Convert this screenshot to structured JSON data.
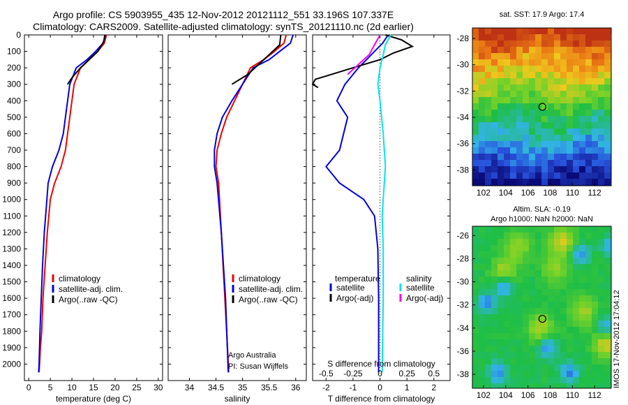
{
  "header": {
    "title_line1": "Argo profile: CS 5903955_435 12-Nov-2012 20121112_551 33.196S 107.337E",
    "title_line2": "Climatology: CARS2009. Satellite-adjusted climatology: synTS_20121110.nc (2d earlier)"
  },
  "colors": {
    "climatology": "#ee0000",
    "satellite": "#0000dd",
    "argo": "#000000",
    "salinity_satellite": "#00e5ee",
    "salinity_argo": "#ee00ee"
  },
  "chart_data": [
    {
      "type": "line",
      "xlabel": "temperature (deg C)",
      "ylabel": "",
      "xlim": [
        -1,
        31
      ],
      "ylim": [
        2100,
        0
      ],
      "xticks": [
        "0",
        "5",
        "10",
        "15",
        "20",
        "25",
        "30"
      ],
      "yticks": [
        "0",
        "100",
        "200",
        "300",
        "400",
        "500",
        "600",
        "700",
        "800",
        "900",
        "1000",
        "1100",
        "1200",
        "1300",
        "1400",
        "1500",
        "1600",
        "1700",
        "1800",
        "1900",
        "2000"
      ],
      "legend": [
        "climatology",
        "satellite-adj. clim.",
        "Argo(..raw -QC)"
      ],
      "legend_position": "lower-right",
      "series": [
        {
          "name": "climatology",
          "x": [
            18,
            17.5,
            16,
            14,
            12,
            10.5,
            10,
            9.5,
            9,
            8.5,
            7.5,
            6,
            5,
            4.3,
            3.8,
            3.3,
            3,
            2.7,
            2.5,
            2.4
          ],
          "y": [
            0,
            50,
            100,
            150,
            200,
            300,
            400,
            500,
            600,
            700,
            800,
            900,
            1000,
            1200,
            1400,
            1600,
            1800,
            1900,
            2000,
            2050
          ]
        },
        {
          "name": "satellite-adj. clim.",
          "x": [
            17.8,
            17.2,
            15.5,
            13.5,
            11,
            9.5,
            9,
            8.5,
            8,
            7,
            5.5,
            4.5,
            4.2,
            3.6,
            3.2,
            2.9,
            2.6,
            2.4,
            2.3
          ],
          "y": [
            0,
            50,
            100,
            150,
            200,
            300,
            400,
            500,
            600,
            700,
            800,
            900,
            1000,
            1200,
            1400,
            1600,
            1800,
            2000,
            2050
          ]
        },
        {
          "name": "Argo(..raw -QC)",
          "x": [
            17.6,
            17.4,
            16,
            14,
            12,
            10,
            9
          ],
          "y": [
            0,
            40,
            100,
            150,
            200,
            260,
            300
          ]
        }
      ]
    },
    {
      "type": "line",
      "xlabel": "salinity",
      "ylabel": "",
      "xlim": [
        33.6,
        36.2
      ],
      "ylim": [
        2100,
        0
      ],
      "xticks": [
        "34",
        "34.5",
        "35",
        "35.5",
        "36"
      ],
      "legend": [
        "climatology",
        "satellite-adj. clim.",
        "Argo(..raw -QC)"
      ],
      "legend_position": "lower-right",
      "annotations": [
        "Argo Australia",
        "PI: Susan Wijffels"
      ],
      "series": [
        {
          "name": "climatology",
          "x": [
            35.82,
            35.78,
            35.6,
            35.4,
            35.15,
            35,
            34.85,
            34.7,
            34.6,
            34.52,
            34.5,
            34.55,
            34.6,
            34.65,
            34.7,
            34.74
          ],
          "y": [
            0,
            50,
            100,
            150,
            200,
            300,
            400,
            500,
            600,
            700,
            800,
            900,
            1200,
            1500,
            1800,
            2050
          ]
        },
        {
          "name": "satellite-adj. clim.",
          "x": [
            35.95,
            35.9,
            35.7,
            35.5,
            35.2,
            35,
            34.8,
            34.62,
            34.52,
            34.47,
            34.47,
            34.52,
            34.6,
            34.68,
            34.73
          ],
          "y": [
            0,
            50,
            100,
            150,
            200,
            300,
            400,
            500,
            600,
            700,
            800,
            900,
            1200,
            1600,
            2050
          ]
        },
        {
          "name": "Argo(..raw -QC)",
          "x": [
            35.72,
            35.7,
            35.5,
            35.3,
            35.1,
            34.8
          ],
          "y": [
            0,
            60,
            120,
            180,
            240,
            300
          ]
        }
      ]
    },
    {
      "type": "line",
      "xlabel": "T difference from climatology",
      "x2label": "S difference from climatology",
      "ylabel": "",
      "xlim": [
        -2.5,
        2.6
      ],
      "x2lim": [
        -0.625,
        0.65
      ],
      "ylim": [
        2100,
        0
      ],
      "xticks": [
        "-2",
        "-1",
        "0",
        "1",
        "2"
      ],
      "x2ticks": [
        "-0.5",
        "-0.25",
        "0",
        "0.25",
        "0.5"
      ],
      "legend": [
        "temperature",
        "satellite",
        "Argo(-adj)",
        "salinity",
        "satellite",
        "Argo(-adj)"
      ],
      "series": [
        {
          "name": "satellite",
          "axis": "T",
          "x": [
            0.3,
            0.1,
            -0.2,
            -0.5,
            -0.8,
            -1.3,
            -1.6,
            -1.2,
            -1.5,
            -2.0,
            -1.5,
            -0.6,
            -0.2,
            -0.08,
            -0.05,
            -0.05
          ],
          "y": [
            0,
            50,
            100,
            150,
            200,
            300,
            400,
            500,
            700,
            800,
            900,
            1000,
            1100,
            1300,
            1600,
            2050
          ]
        },
        {
          "name": "Argo(-adj)",
          "axis": "T",
          "x": [
            0.2,
            0.8,
            1.2,
            0.5,
            0,
            -1,
            -1.8,
            -2.4,
            -2.5,
            -2.3
          ],
          "y": [
            0,
            30,
            70,
            110,
            150,
            200,
            240,
            270,
            300,
            320
          ]
        },
        {
          "name": "satellite",
          "axis": "S",
          "x": [
            0.1,
            0.05,
            0.03,
            0,
            -0.02,
            0,
            0.03,
            0.05,
            0.03,
            0.02,
            0.03,
            0.03,
            0.02
          ],
          "y": [
            0,
            60,
            120,
            200,
            300,
            400,
            600,
            800,
            1000,
            1100,
            1300,
            1600,
            2050
          ]
        },
        {
          "name": "Argo(-adj)",
          "axis": "S",
          "x": [
            0,
            -0.05,
            -0.1,
            -0.2,
            -0.3
          ],
          "y": [
            0,
            60,
            120,
            180,
            240
          ]
        }
      ]
    },
    {
      "type": "heatmap",
      "title": "sat. SST: 17.9 Argo: 17.4",
      "xlim": [
        101,
        113.5
      ],
      "ylim": [
        -39.2,
        -27.2
      ],
      "xticks": [
        "102",
        "104",
        "106",
        "108",
        "110",
        "112"
      ],
      "yticks": [
        "-28",
        "-30",
        "-32",
        "-34",
        "-36",
        "-38"
      ],
      "marker": {
        "x": 107.3,
        "y": -33.2
      }
    },
    {
      "type": "heatmap",
      "title": "Altim. SLA: -0.19",
      "subtitle": "Argo h1000: NaN h2000: NaN",
      "xlim": [
        101,
        113.5
      ],
      "ylim": [
        -39.2,
        -25.2
      ],
      "xticks": [
        "102",
        "104",
        "106",
        "108",
        "110",
        "112"
      ],
      "yticks": [
        "-26",
        "-28",
        "-30",
        "-32",
        "-34",
        "-36",
        "-38"
      ],
      "marker": {
        "x": 107.3,
        "y": -33.2
      }
    }
  ],
  "footer": {
    "stamp": "IMOS 17-Nov-2012 17:04:12"
  }
}
